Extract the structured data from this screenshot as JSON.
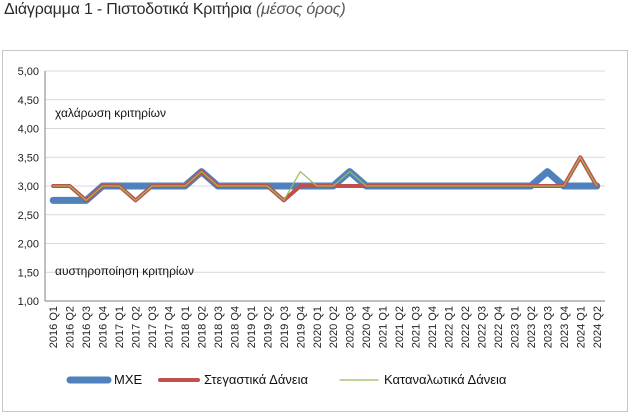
{
  "title": {
    "main": "Διάγραμμα 1 - Πιστοδοτικά Κριτήρια",
    "sub": "(μέσος όρος)"
  },
  "colors": {
    "mxe": "#4f81bd",
    "housing": "#c0504d",
    "consumer": "#9bbb59",
    "grid": "#d9d9d9",
    "axis": "#808080"
  },
  "chart_data": {
    "type": "line",
    "ylim": [
      1.0,
      5.0
    ],
    "yticks": [
      "1,00",
      "1,50",
      "2,00",
      "2,50",
      "3,00",
      "3,50",
      "4,00",
      "4,50",
      "5,00"
    ],
    "grid": "horizontal",
    "legend_position": "bottom",
    "categories": [
      "2016 Q1",
      "2016 Q2",
      "2016 Q3",
      "2016 Q4",
      "2017 Q1",
      "2017 Q2",
      "2017 Q3",
      "2017 Q4",
      "2018 Q1",
      "2018 Q2",
      "2018 Q3",
      "2018 Q4",
      "2019 Q1",
      "2019 Q2",
      "2019 Q3",
      "2019 Q4",
      "2020 Q1",
      "2020 Q2",
      "2020 Q3",
      "2020 Q4",
      "2021 Q1",
      "2021 Q2",
      "2021 Q3",
      "2021 Q4",
      "2022 Q1",
      "2022 Q2",
      "2022 Q3",
      "2022 Q4",
      "2023 Q1",
      "2023 Q2",
      "2023 Q3",
      "2023 Q4",
      "2024 Q1",
      "2024 Q2"
    ],
    "series": [
      {
        "name": "ΜΧΕ",
        "color_key": "mxe",
        "values": [
          2.75,
          2.75,
          2.75,
          3.0,
          3.0,
          3.0,
          3.0,
          3.0,
          3.0,
          3.25,
          3.0,
          3.0,
          3.0,
          3.0,
          3.0,
          3.0,
          3.0,
          3.0,
          3.25,
          3.0,
          3.0,
          3.0,
          3.0,
          3.0,
          3.0,
          3.0,
          3.0,
          3.0,
          3.0,
          3.0,
          3.25,
          3.0,
          3.0,
          3.0
        ]
      },
      {
        "name": "Στεγαστικά Δάνεια",
        "color_key": "housing",
        "values": [
          3.0,
          3.0,
          2.75,
          3.0,
          3.0,
          2.75,
          3.0,
          3.0,
          3.0,
          3.25,
          3.0,
          3.0,
          3.0,
          3.0,
          2.75,
          3.0,
          3.0,
          3.0,
          3.0,
          3.0,
          3.0,
          3.0,
          3.0,
          3.0,
          3.0,
          3.0,
          3.0,
          3.0,
          3.0,
          3.0,
          3.0,
          3.0,
          3.5,
          3.0
        ]
      },
      {
        "name": "Καταναλωτικά Δάνεια",
        "color_key": "consumer",
        "values": [
          3.0,
          3.0,
          2.75,
          3.0,
          3.0,
          2.75,
          3.0,
          3.0,
          3.0,
          3.25,
          3.0,
          3.0,
          3.0,
          3.0,
          2.75,
          3.25,
          3.0,
          3.0,
          3.25,
          3.0,
          3.0,
          3.0,
          3.0,
          3.0,
          3.0,
          3.0,
          3.0,
          3.0,
          3.0,
          3.0,
          3.0,
          3.0,
          3.5,
          3.0
        ]
      }
    ],
    "annotations": {
      "upper": "χαλάρωση κριτηρίων",
      "lower": "αυστηροποίηση κριτηρίων"
    }
  }
}
